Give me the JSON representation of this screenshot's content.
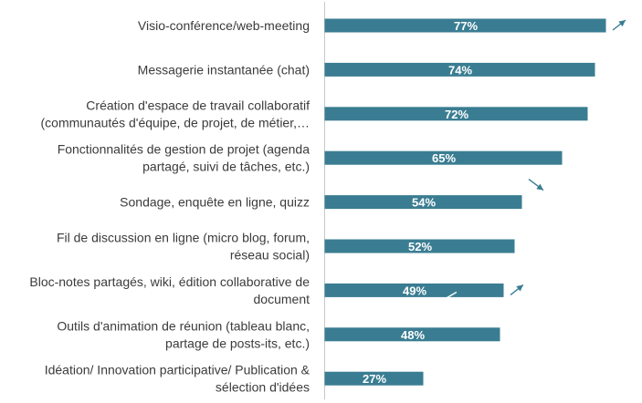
{
  "chart_data": {
    "type": "bar",
    "orientation": "horizontal",
    "title": "",
    "xlabel": "",
    "ylabel": "",
    "grid": false,
    "legend": "none",
    "bar_color": "#3a7d92",
    "xlim": [
      0,
      100
    ],
    "categories": [
      [
        "Visio-conférence/web-meeting"
      ],
      [
        "Messagerie instantanée (chat)"
      ],
      [
        "Création d'espace de travail collaboratif",
        "(communautés d'équipe, de projet, de métier,…"
      ],
      [
        "Fonctionnalités de gestion de projet (agenda",
        "partagé, suivi de tâches, etc.)"
      ],
      [
        "Sondage, enquête en ligne, quizz"
      ],
      [
        "Fil de discussion en ligne (micro blog, forum,",
        "réseau social)"
      ],
      [
        "Bloc-notes partagés, wiki, édition collaborative de",
        "document"
      ],
      [
        "Outils d'animation de réunion (tableau blanc,",
        "partage de posts-its, etc.)"
      ],
      [
        "Idéation/ Innovation participative/ Publication &",
        "sélection d'idées"
      ]
    ],
    "values": [
      77,
      74,
      72,
      65,
      54,
      52,
      49,
      48,
      27
    ],
    "value_labels": [
      "77%",
      "74%",
      "72%",
      "65%",
      "54%",
      "52%",
      "49%",
      "48%",
      "27%"
    ],
    "trend_arrows": [
      {
        "index": 0,
        "direction": "up"
      },
      {
        "index": 4,
        "direction": "down"
      },
      {
        "index": 6,
        "direction": "up"
      }
    ]
  }
}
